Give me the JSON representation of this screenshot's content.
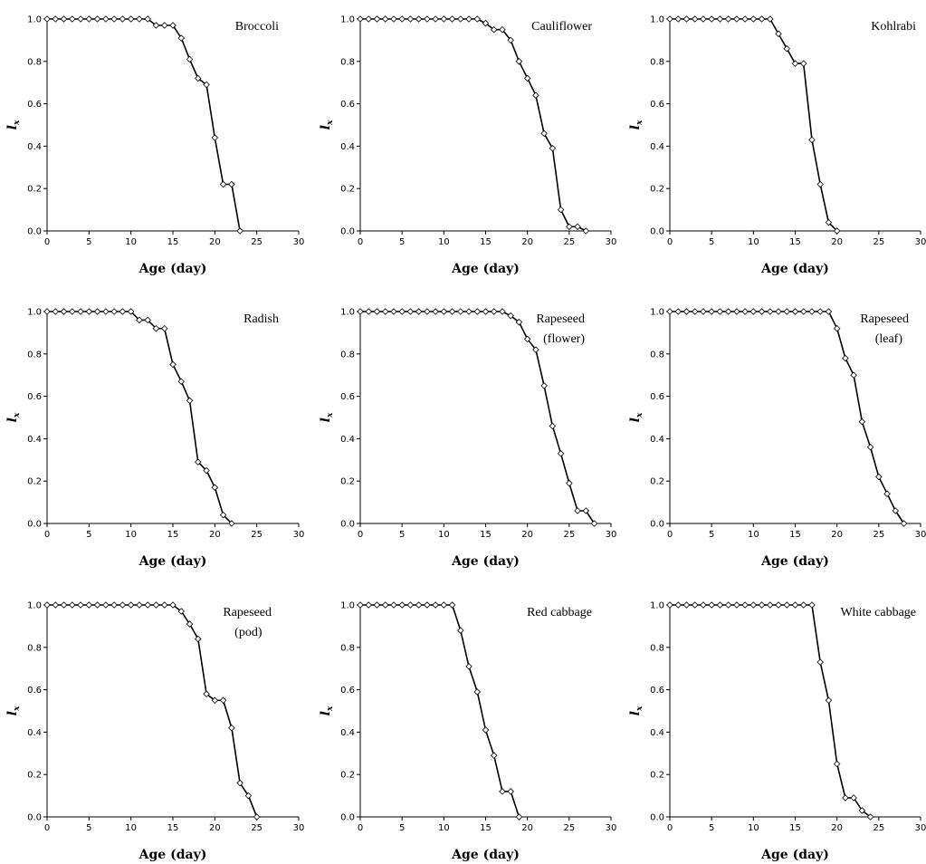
{
  "chart_data": [
    {
      "type": "line",
      "title": [
        "Broccoli"
      ],
      "xlabel": "Age (day)",
      "ylabel": "l",
      "ylabel_sub": "x",
      "xlim": [
        0,
        30
      ],
      "ylim": [
        0,
        1
      ],
      "x_ticks": [
        "0",
        "5",
        "10",
        "15",
        "20",
        "25",
        "30"
      ],
      "y_ticks": [
        "0.0",
        "0.2",
        "0.4",
        "0.6",
        "0.8",
        "1.0"
      ],
      "x": [
        0,
        1,
        2,
        3,
        4,
        5,
        6,
        7,
        8,
        9,
        10,
        11,
        12,
        13,
        14,
        15,
        16,
        17,
        18,
        19,
        20,
        21,
        22,
        23
      ],
      "y": [
        1,
        1,
        1,
        1,
        1,
        1,
        1,
        1,
        1,
        1,
        1,
        1,
        1,
        0.97,
        0.97,
        0.97,
        0.91,
        0.81,
        0.72,
        0.69,
        0.44,
        0.22,
        0.22,
        0
      ]
    },
    {
      "type": "line",
      "title": [
        "Cauliflower"
      ],
      "xlabel": "Age (day)",
      "ylabel": "l",
      "ylabel_sub": "x",
      "xlim": [
        0,
        30
      ],
      "ylim": [
        0,
        1
      ],
      "x_ticks": [
        "0",
        "5",
        "10",
        "15",
        "20",
        "25",
        "30"
      ],
      "y_ticks": [
        "0.0",
        "0.2",
        "0.4",
        "0.6",
        "0.8",
        "1.0"
      ],
      "x": [
        0,
        1,
        2,
        3,
        4,
        5,
        6,
        7,
        8,
        9,
        10,
        11,
        12,
        13,
        14,
        15,
        16,
        17,
        18,
        19,
        20,
        21,
        22,
        23,
        24,
        25,
        26,
        27
      ],
      "y": [
        1,
        1,
        1,
        1,
        1,
        1,
        1,
        1,
        1,
        1,
        1,
        1,
        1,
        1,
        1,
        0.98,
        0.95,
        0.95,
        0.9,
        0.8,
        0.72,
        0.64,
        0.46,
        0.39,
        0.1,
        0.02,
        0.02,
        0
      ]
    },
    {
      "type": "line",
      "title": [
        "Kohlrabi"
      ],
      "xlabel": "Age (day)",
      "ylabel": "l",
      "ylabel_sub": "x",
      "xlim": [
        0,
        30
      ],
      "ylim": [
        0,
        1
      ],
      "x_ticks": [
        "0",
        "5",
        "10",
        "15",
        "20",
        "25",
        "30"
      ],
      "y_ticks": [
        "0.0",
        "0.2",
        "0.4",
        "0.6",
        "0.8",
        "1.0"
      ],
      "x": [
        0,
        1,
        2,
        3,
        4,
        5,
        6,
        7,
        8,
        9,
        10,
        11,
        12,
        13,
        14,
        15,
        16,
        17,
        18,
        19,
        20
      ],
      "y": [
        1,
        1,
        1,
        1,
        1,
        1,
        1,
        1,
        1,
        1,
        1,
        1,
        1,
        0.93,
        0.86,
        0.79,
        0.79,
        0.43,
        0.22,
        0.04,
        0
      ]
    },
    {
      "type": "line",
      "title": [
        "Radish"
      ],
      "xlabel": "Age (day)",
      "ylabel": "l",
      "ylabel_sub": "x",
      "xlim": [
        0,
        30
      ],
      "ylim": [
        0,
        1
      ],
      "x_ticks": [
        "0",
        "5",
        "10",
        "15",
        "20",
        "25",
        "30"
      ],
      "y_ticks": [
        "0.0",
        "0.2",
        "0.4",
        "0.6",
        "0.8",
        "1.0"
      ],
      "x": [
        0,
        1,
        2,
        3,
        4,
        5,
        6,
        7,
        8,
        9,
        10,
        11,
        12,
        13,
        14,
        15,
        16,
        17,
        18,
        19,
        20,
        21,
        22
      ],
      "y": [
        1,
        1,
        1,
        1,
        1,
        1,
        1,
        1,
        1,
        1,
        1,
        0.96,
        0.96,
        0.92,
        0.92,
        0.75,
        0.67,
        0.58,
        0.29,
        0.25,
        0.17,
        0.04,
        0
      ]
    },
    {
      "type": "line",
      "title": [
        "Rapeseed",
        "(flower)"
      ],
      "xlabel": "Age (day)",
      "ylabel": "l",
      "ylabel_sub": "x",
      "xlim": [
        0,
        30
      ],
      "ylim": [
        0,
        1
      ],
      "x_ticks": [
        "0",
        "5",
        "10",
        "15",
        "20",
        "25",
        "30"
      ],
      "y_ticks": [
        "0.0",
        "0.2",
        "0.4",
        "0.6",
        "0.8",
        "1.0"
      ],
      "x": [
        0,
        1,
        2,
        3,
        4,
        5,
        6,
        7,
        8,
        9,
        10,
        11,
        12,
        13,
        14,
        15,
        16,
        17,
        18,
        19,
        20,
        21,
        22,
        23,
        24,
        25,
        26,
        27,
        28
      ],
      "y": [
        1,
        1,
        1,
        1,
        1,
        1,
        1,
        1,
        1,
        1,
        1,
        1,
        1,
        1,
        1,
        1,
        1,
        1,
        0.98,
        0.95,
        0.87,
        0.82,
        0.65,
        0.46,
        0.33,
        0.19,
        0.06,
        0.06,
        0
      ]
    },
    {
      "type": "line",
      "title": [
        "Rapeseed",
        "(leaf)"
      ],
      "xlabel": "Age (day)",
      "ylabel": "l",
      "ylabel_sub": "x",
      "xlim": [
        0,
        30
      ],
      "ylim": [
        0,
        1
      ],
      "x_ticks": [
        "0",
        "5",
        "10",
        "15",
        "20",
        "25",
        "30"
      ],
      "y_ticks": [
        "0.0",
        "0.2",
        "0.4",
        "0.6",
        "0.8",
        "1.0"
      ],
      "x": [
        0,
        1,
        2,
        3,
        4,
        5,
        6,
        7,
        8,
        9,
        10,
        11,
        12,
        13,
        14,
        15,
        16,
        17,
        18,
        19,
        20,
        21,
        22,
        23,
        24,
        25,
        26,
        27,
        28
      ],
      "y": [
        1,
        1,
        1,
        1,
        1,
        1,
        1,
        1,
        1,
        1,
        1,
        1,
        1,
        1,
        1,
        1,
        1,
        1,
        1,
        1,
        0.92,
        0.78,
        0.7,
        0.48,
        0.36,
        0.22,
        0.14,
        0.06,
        0
      ]
    },
    {
      "type": "line",
      "title": [
        "Rapeseed",
        "(pod)"
      ],
      "xlabel": "Age (day)",
      "ylabel": "l",
      "ylabel_sub": "x",
      "xlim": [
        0,
        30
      ],
      "ylim": [
        0,
        1
      ],
      "x_ticks": [
        "0",
        "5",
        "10",
        "15",
        "20",
        "25",
        "30"
      ],
      "y_ticks": [
        "0.0",
        "0.2",
        "0.4",
        "0.6",
        "0.8",
        "1.0"
      ],
      "x": [
        0,
        1,
        2,
        3,
        4,
        5,
        6,
        7,
        8,
        9,
        10,
        11,
        12,
        13,
        14,
        15,
        16,
        17,
        18,
        19,
        20,
        21,
        22,
        23,
        24,
        25
      ],
      "y": [
        1,
        1,
        1,
        1,
        1,
        1,
        1,
        1,
        1,
        1,
        1,
        1,
        1,
        1,
        1,
        1,
        0.97,
        0.91,
        0.84,
        0.58,
        0.55,
        0.55,
        0.42,
        0.16,
        0.1,
        0
      ]
    },
    {
      "type": "line",
      "title": [
        "Red cabbage"
      ],
      "xlabel": "Age (day)",
      "ylabel": "l",
      "ylabel_sub": "x",
      "xlim": [
        0,
        30
      ],
      "ylim": [
        0,
        1
      ],
      "x_ticks": [
        "0",
        "5",
        "10",
        "15",
        "20",
        "25",
        "30"
      ],
      "y_ticks": [
        "0.0",
        "0.2",
        "0.4",
        "0.6",
        "0.8",
        "1.0"
      ],
      "x": [
        0,
        1,
        2,
        3,
        4,
        5,
        6,
        7,
        8,
        9,
        10,
        11,
        12,
        13,
        14,
        15,
        16,
        17,
        18,
        19
      ],
      "y": [
        1,
        1,
        1,
        1,
        1,
        1,
        1,
        1,
        1,
        1,
        1,
        1,
        0.88,
        0.71,
        0.59,
        0.41,
        0.29,
        0.12,
        0.12,
        0
      ]
    },
    {
      "type": "line",
      "title": [
        "White cabbage"
      ],
      "xlabel": "Age (day)",
      "ylabel": "l",
      "ylabel_sub": "x",
      "xlim": [
        0,
        30
      ],
      "ylim": [
        0,
        1
      ],
      "x_ticks": [
        "0",
        "5",
        "10",
        "15",
        "20",
        "25",
        "30"
      ],
      "y_ticks": [
        "0.0",
        "0.2",
        "0.4",
        "0.6",
        "0.8",
        "1.0"
      ],
      "x": [
        0,
        1,
        2,
        3,
        4,
        5,
        6,
        7,
        8,
        9,
        10,
        11,
        12,
        13,
        14,
        15,
        16,
        17,
        18,
        19,
        20,
        21,
        22,
        23,
        24
      ],
      "y": [
        1,
        1,
        1,
        1,
        1,
        1,
        1,
        1,
        1,
        1,
        1,
        1,
        1,
        1,
        1,
        1,
        1,
        1,
        0.73,
        0.55,
        0.25,
        0.09,
        0.09,
        0.03,
        0
      ]
    }
  ]
}
